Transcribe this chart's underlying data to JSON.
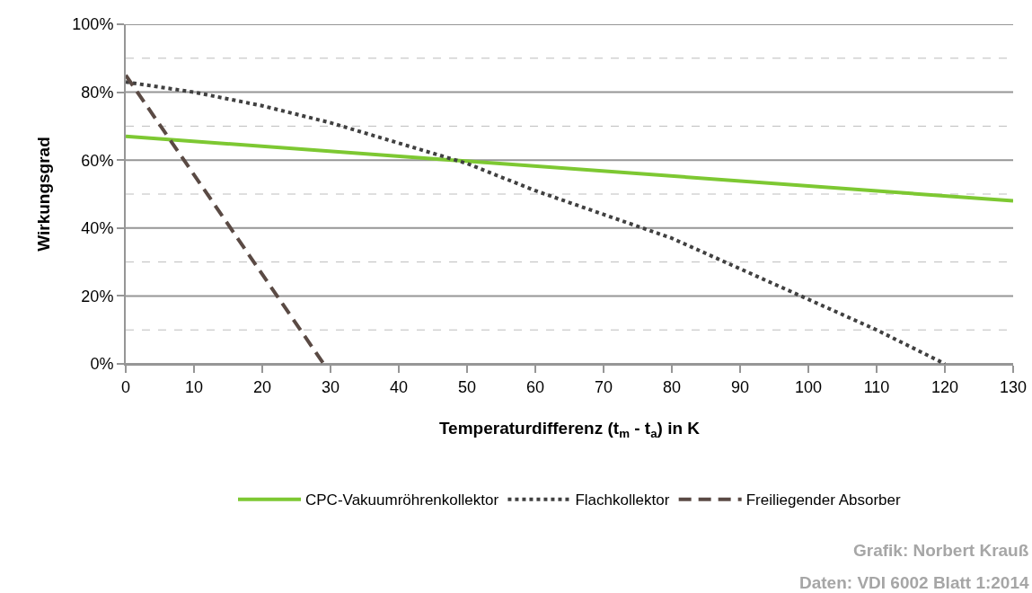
{
  "chart_data": {
    "type": "line",
    "xlabel": "Temperaturdifferenz (t$_{m}$ - t$_{a}$) in K",
    "ylabel": "Wirkungsgrad",
    "series": [
      {
        "name": "CPC-Vakuumröhrenkollektor",
        "color": "#7dc832",
        "line_style": "solid",
        "x": [
          0,
          130
        ],
        "values": [
          67,
          48
        ]
      },
      {
        "name": "Flachkollektor",
        "color": "#404040",
        "line_style": "dotted",
        "x": [
          0,
          10,
          20,
          30,
          40,
          50,
          60,
          70,
          80,
          90,
          100,
          110,
          120
        ],
        "values": [
          83,
          80,
          76,
          71,
          65,
          59,
          51,
          44,
          37,
          28,
          19,
          10,
          0
        ]
      },
      {
        "name": "Freiliegender Absorber",
        "color": "#5a4a44",
        "line_style": "dashed",
        "x": [
          0,
          29
        ],
        "values": [
          85,
          0
        ]
      }
    ],
    "xlim": [
      0,
      130
    ],
    "xticks": [
      0,
      10,
      20,
      30,
      40,
      50,
      60,
      70,
      80,
      90,
      100,
      110,
      120,
      130
    ],
    "ylim": [
      0,
      100
    ],
    "yticks": [
      {
        "value": 0,
        "label": "0%"
      },
      {
        "value": 10,
        "label": null
      },
      {
        "value": 20,
        "label": "20%"
      },
      {
        "value": 30,
        "label": null
      },
      {
        "value": 40,
        "label": "40%"
      },
      {
        "value": 50,
        "label": null
      },
      {
        "value": 60,
        "label": "60%"
      },
      {
        "value": 70,
        "label": null
      },
      {
        "value": 80,
        "label": "80%"
      },
      {
        "value": 90,
        "label": null
      },
      {
        "value": 100,
        "label": "100%"
      }
    ],
    "grid": "y",
    "legend": "bottom",
    "marker": "none",
    "annotations": [
      "Grafik: Norbert Krauß",
      "Daten: VDI 6002 Blatt 1:2014"
    ]
  }
}
